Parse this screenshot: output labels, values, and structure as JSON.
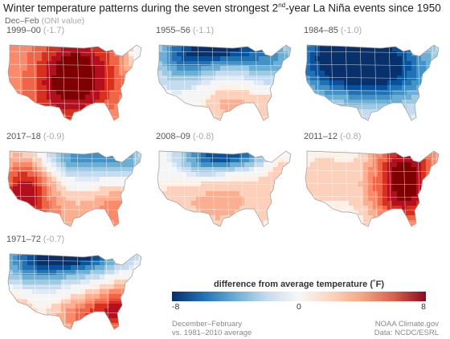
{
  "title": {
    "prefix": "Winter temperature patterns during the seven strongest 2",
    "sup": "nd",
    "suffix": "-year La Niña events since 1950"
  },
  "subtitle": {
    "season": "Dec–Feb",
    "oni": "(ONI value)"
  },
  "panels": [
    {
      "years": "1999–00",
      "oni": "(-1.7)",
      "scheme": "warm_all"
    },
    {
      "years": "1955–56",
      "oni": "(-1.1)",
      "scheme": "cold_north"
    },
    {
      "years": "1984–85",
      "oni": "(-1.0)",
      "scheme": "cold_west"
    },
    {
      "years": "2017–18",
      "oni": "(-0.9)",
      "scheme": "warm_sw_cold_n"
    },
    {
      "years": "2008–09",
      "oni": "(-0.8)",
      "scheme": "cold_north_light"
    },
    {
      "years": "2011–12",
      "oni": "(-0.8)",
      "scheme": "warm_east"
    },
    {
      "years": "1971–72",
      "oni": "(-0.7)",
      "scheme": "cold_n_warm_se"
    }
  ],
  "legend": {
    "title": "difference from average temperature (˚F)",
    "min": "-8",
    "mid": "0",
    "max": "8",
    "colors": {
      "cold": "#08306b",
      "neutral": "#f7f7f7",
      "warm": "#8b0a1f"
    }
  },
  "footer": {
    "period": "December–February",
    "baseline": "vs. 1981–2010 average",
    "source": "NOAA Climate.gov",
    "data": "Data: NCDC/ESRL"
  }
}
